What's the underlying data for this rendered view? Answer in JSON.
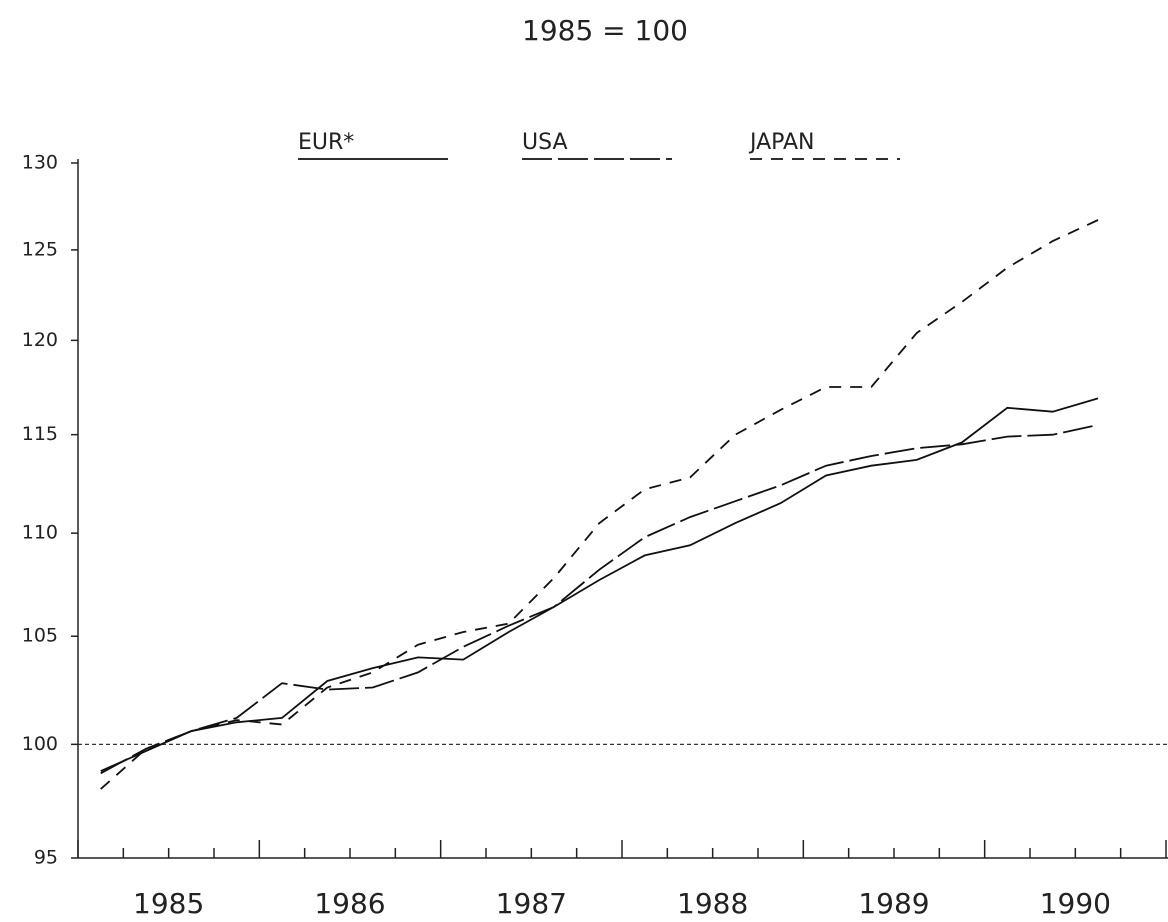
{
  "chart_data": {
    "type": "line",
    "title": "1985 = 100",
    "x": [
      1985.125,
      1985.375,
      1985.625,
      1985.875,
      1986.125,
      1986.375,
      1986.625,
      1986.875,
      1987.125,
      1987.375,
      1987.625,
      1987.875,
      1988.125,
      1988.375,
      1988.625,
      1988.875,
      1989.125,
      1989.375,
      1989.625,
      1989.875,
      1990.125,
      1990.375,
      1990.625
    ],
    "series": [
      {
        "name": "EUR*",
        "color": "#111111",
        "dash": "none",
        "values": [
          98.8,
          99.7,
          100.6,
          101.0,
          101.2,
          102.9,
          103.5,
          104.0,
          103.9,
          105.2,
          106.4,
          107.7,
          108.9,
          109.4,
          110.5,
          111.5,
          112.9,
          113.4,
          113.7,
          114.6,
          116.4,
          116.2,
          116.9
        ]
      },
      {
        "name": "USA",
        "color": "#111111",
        "dash": "30 6",
        "values": [
          98.7,
          99.8,
          100.6,
          101.2,
          102.8,
          102.5,
          102.6,
          103.3,
          104.5,
          105.5,
          106.4,
          108.2,
          109.8,
          110.8,
          111.6,
          112.4,
          113.4,
          113.9,
          114.3,
          114.5,
          114.9,
          115.0,
          115.5
        ]
      },
      {
        "name": "JAPAN",
        "color": "#111111",
        "dash": "12 9",
        "values": [
          98.0,
          99.8,
          100.6,
          101.1,
          100.9,
          102.6,
          103.3,
          104.6,
          105.2,
          105.6,
          107.8,
          110.5,
          112.2,
          112.8,
          115.0,
          116.3,
          117.5,
          117.5,
          120.4,
          122.1,
          124.0,
          125.5,
          126.7
        ]
      }
    ],
    "xlim": [
      1985,
      1991
    ],
    "xticks": [
      {
        "value": 1985.5,
        "label": "1985"
      },
      {
        "value": 1986.5,
        "label": "1986"
      },
      {
        "value": 1987.5,
        "label": "1987"
      },
      {
        "value": 1988.5,
        "label": "1988"
      },
      {
        "value": 1989.5,
        "label": "1989"
      },
      {
        "value": 1990.5,
        "label": "1990"
      }
    ],
    "ylim": [
      95,
      130
    ],
    "yticks": [
      95,
      100,
      105,
      110,
      115,
      120,
      125,
      130
    ],
    "log_scale": true,
    "reference_line": 100,
    "legend": "top",
    "grid": false
  }
}
